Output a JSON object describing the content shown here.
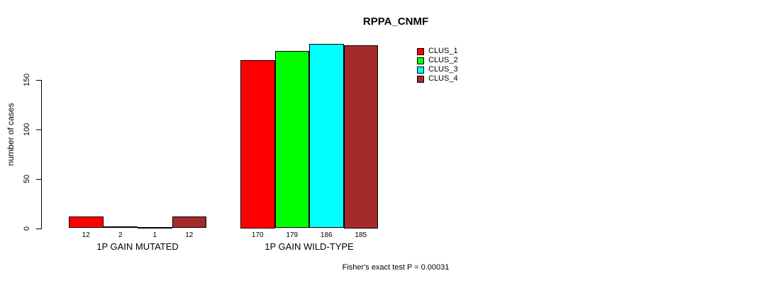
{
  "chart_data": {
    "type": "bar",
    "title": "RPPA_CNMF",
    "ylabel": "number of cases",
    "xlabel": "",
    "categories": [
      "1P GAIN MUTATED",
      "1P GAIN WILD-TYPE"
    ],
    "series": [
      {
        "name": "CLUS_1",
        "color": "#FF0000",
        "values": [
          12,
          170
        ]
      },
      {
        "name": "CLUS_2",
        "color": "#00FF00",
        "values": [
          2,
          179
        ]
      },
      {
        "name": "CLUS_3",
        "color": "#00FFFF",
        "values": [
          1,
          186
        ]
      },
      {
        "name": "CLUS_4",
        "color": "#A52A2A",
        "values": [
          12,
          185
        ]
      }
    ],
    "yticks": [
      0,
      50,
      100,
      150
    ],
    "ylim": [
      0,
      193
    ],
    "grid": false,
    "legend_position": "top-right",
    "bar_value_labels": true,
    "annotation": "Fisher's exact test P = 0.00031"
  }
}
